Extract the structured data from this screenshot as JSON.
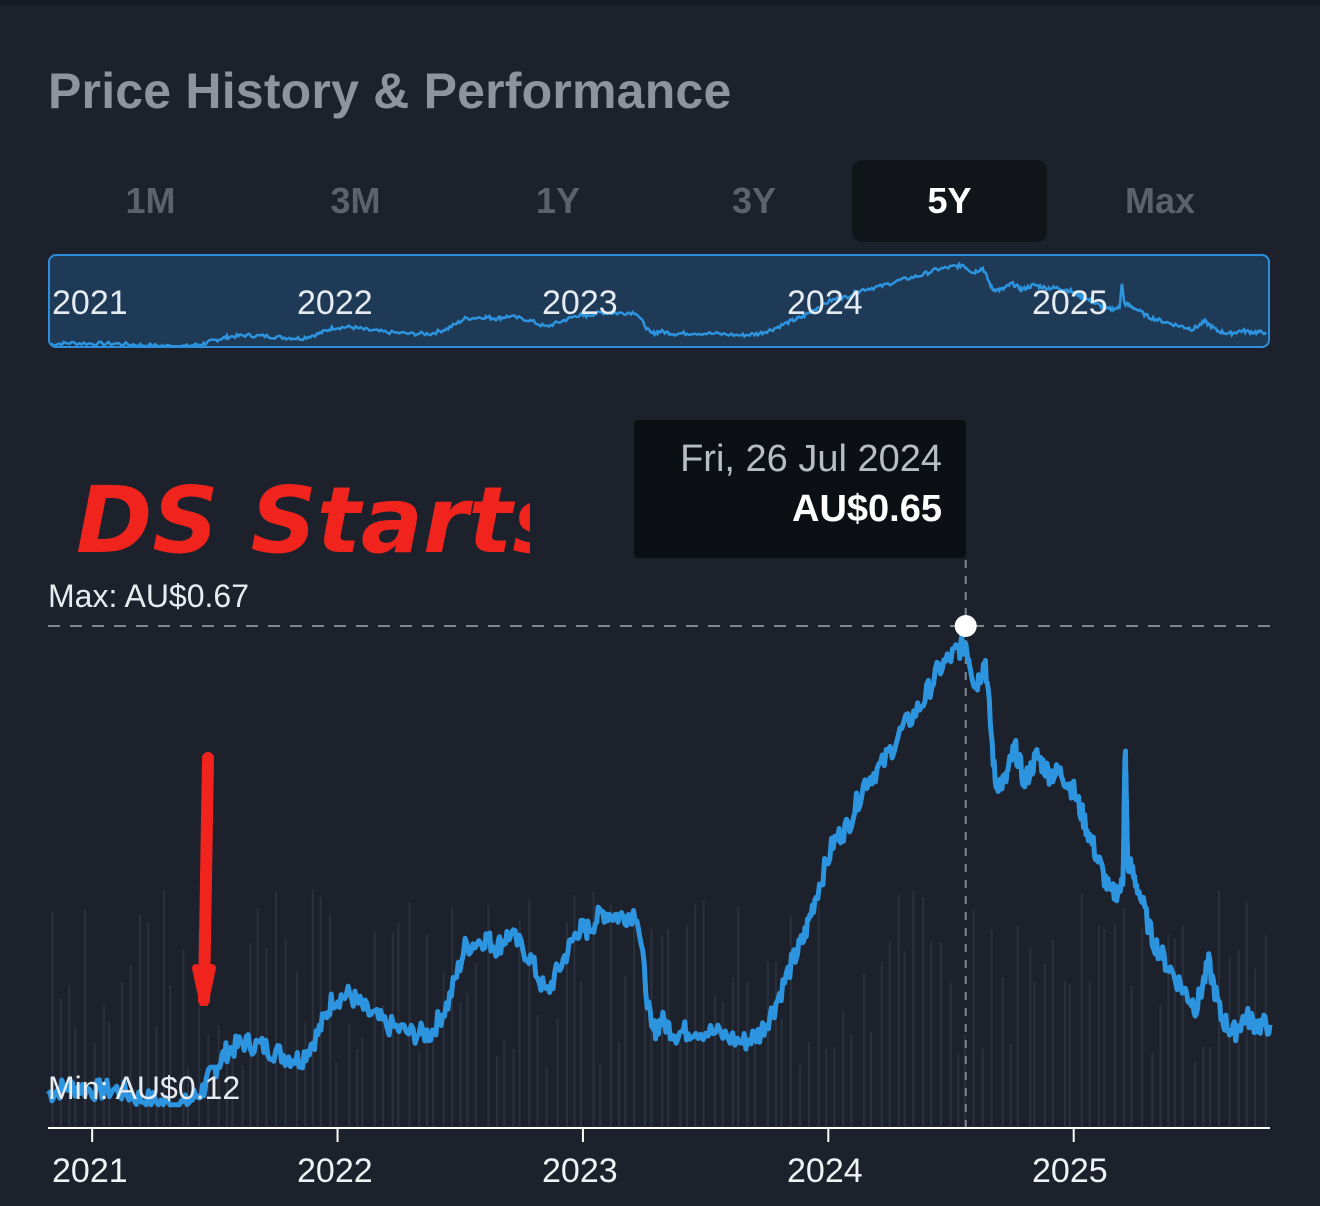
{
  "header": {
    "title": "Price History & Performance"
  },
  "tabs": [
    {
      "label": "1M",
      "active": false
    },
    {
      "label": "3M",
      "active": false
    },
    {
      "label": "1Y",
      "active": false
    },
    {
      "label": "3Y",
      "active": false
    },
    {
      "label": "5Y",
      "active": true
    },
    {
      "label": "Max",
      "active": false
    }
  ],
  "navigator": {
    "year_labels": [
      "2021",
      "2022",
      "2023",
      "2024",
      "2025"
    ]
  },
  "tooltip": {
    "date": "Fri, 26 Jul 2024",
    "price": "AU$0.65"
  },
  "labels": {
    "max": "Max: AU$0.67",
    "min": "Min: AU$0.12"
  },
  "annotation": {
    "text": "DS Starts",
    "arrow": "down-arrow"
  },
  "colors": {
    "line": "#2d94df",
    "annotation": "#f0241d",
    "background": "#1c212c"
  },
  "chart_data": {
    "type": "line",
    "title": "Price History & Performance",
    "currency": "AU$",
    "range": "5Y",
    "x_range": [
      2020.82,
      2025.8
    ],
    "y_range": [
      0.12,
      0.67
    ],
    "xticks": [
      2021,
      2022,
      2023,
      2024,
      2025
    ],
    "max": 0.67,
    "min": 0.12,
    "highlight": {
      "date": "Fri, 26 Jul 2024",
      "x": 2024.56,
      "y": 0.65
    },
    "series": [
      {
        "name": "Price (AU$)",
        "x": [
          2020.82,
          2020.9,
          2021.0,
          2021.1,
          2021.2,
          2021.3,
          2021.38,
          2021.45,
          2021.5,
          2021.55,
          2021.62,
          2021.7,
          2021.78,
          2021.85,
          2021.92,
          2021.98,
          2022.05,
          2022.12,
          2022.2,
          2022.3,
          2022.38,
          2022.45,
          2022.52,
          2022.6,
          2022.65,
          2022.7,
          2022.78,
          2022.85,
          2022.92,
          2022.98,
          2023.02,
          2023.08,
          2023.15,
          2023.22,
          2023.28,
          2023.32,
          2023.38,
          2023.45,
          2023.55,
          2023.65,
          2023.72,
          2023.78,
          2023.85,
          2023.9,
          2023.95,
          2024.02,
          2024.08,
          2024.15,
          2024.22,
          2024.3,
          2024.38,
          2024.45,
          2024.52,
          2024.56,
          2024.6,
          2024.64,
          2024.68,
          2024.72,
          2024.76,
          2024.8,
          2024.85,
          2024.9,
          2024.95,
          2025.0,
          2025.05,
          2025.1,
          2025.15,
          2025.2,
          2025.21,
          2025.22,
          2025.26,
          2025.32,
          2025.38,
          2025.45,
          2025.5,
          2025.55,
          2025.6,
          2025.65,
          2025.7,
          2025.75,
          2025.8
        ],
        "y": [
          0.13,
          0.14,
          0.135,
          0.135,
          0.125,
          0.12,
          0.118,
          0.135,
          0.16,
          0.18,
          0.19,
          0.185,
          0.175,
          0.17,
          0.2,
          0.24,
          0.245,
          0.225,
          0.21,
          0.2,
          0.2,
          0.235,
          0.3,
          0.31,
          0.3,
          0.315,
          0.29,
          0.245,
          0.285,
          0.32,
          0.32,
          0.34,
          0.335,
          0.34,
          0.2,
          0.215,
          0.2,
          0.205,
          0.2,
          0.19,
          0.2,
          0.23,
          0.28,
          0.31,
          0.36,
          0.42,
          0.44,
          0.49,
          0.51,
          0.55,
          0.58,
          0.62,
          0.64,
          0.65,
          0.6,
          0.63,
          0.49,
          0.49,
          0.53,
          0.49,
          0.52,
          0.5,
          0.5,
          0.48,
          0.44,
          0.4,
          0.36,
          0.37,
          0.53,
          0.4,
          0.37,
          0.31,
          0.28,
          0.25,
          0.23,
          0.28,
          0.22,
          0.2,
          0.22,
          0.21,
          0.21
        ]
      }
    ]
  }
}
